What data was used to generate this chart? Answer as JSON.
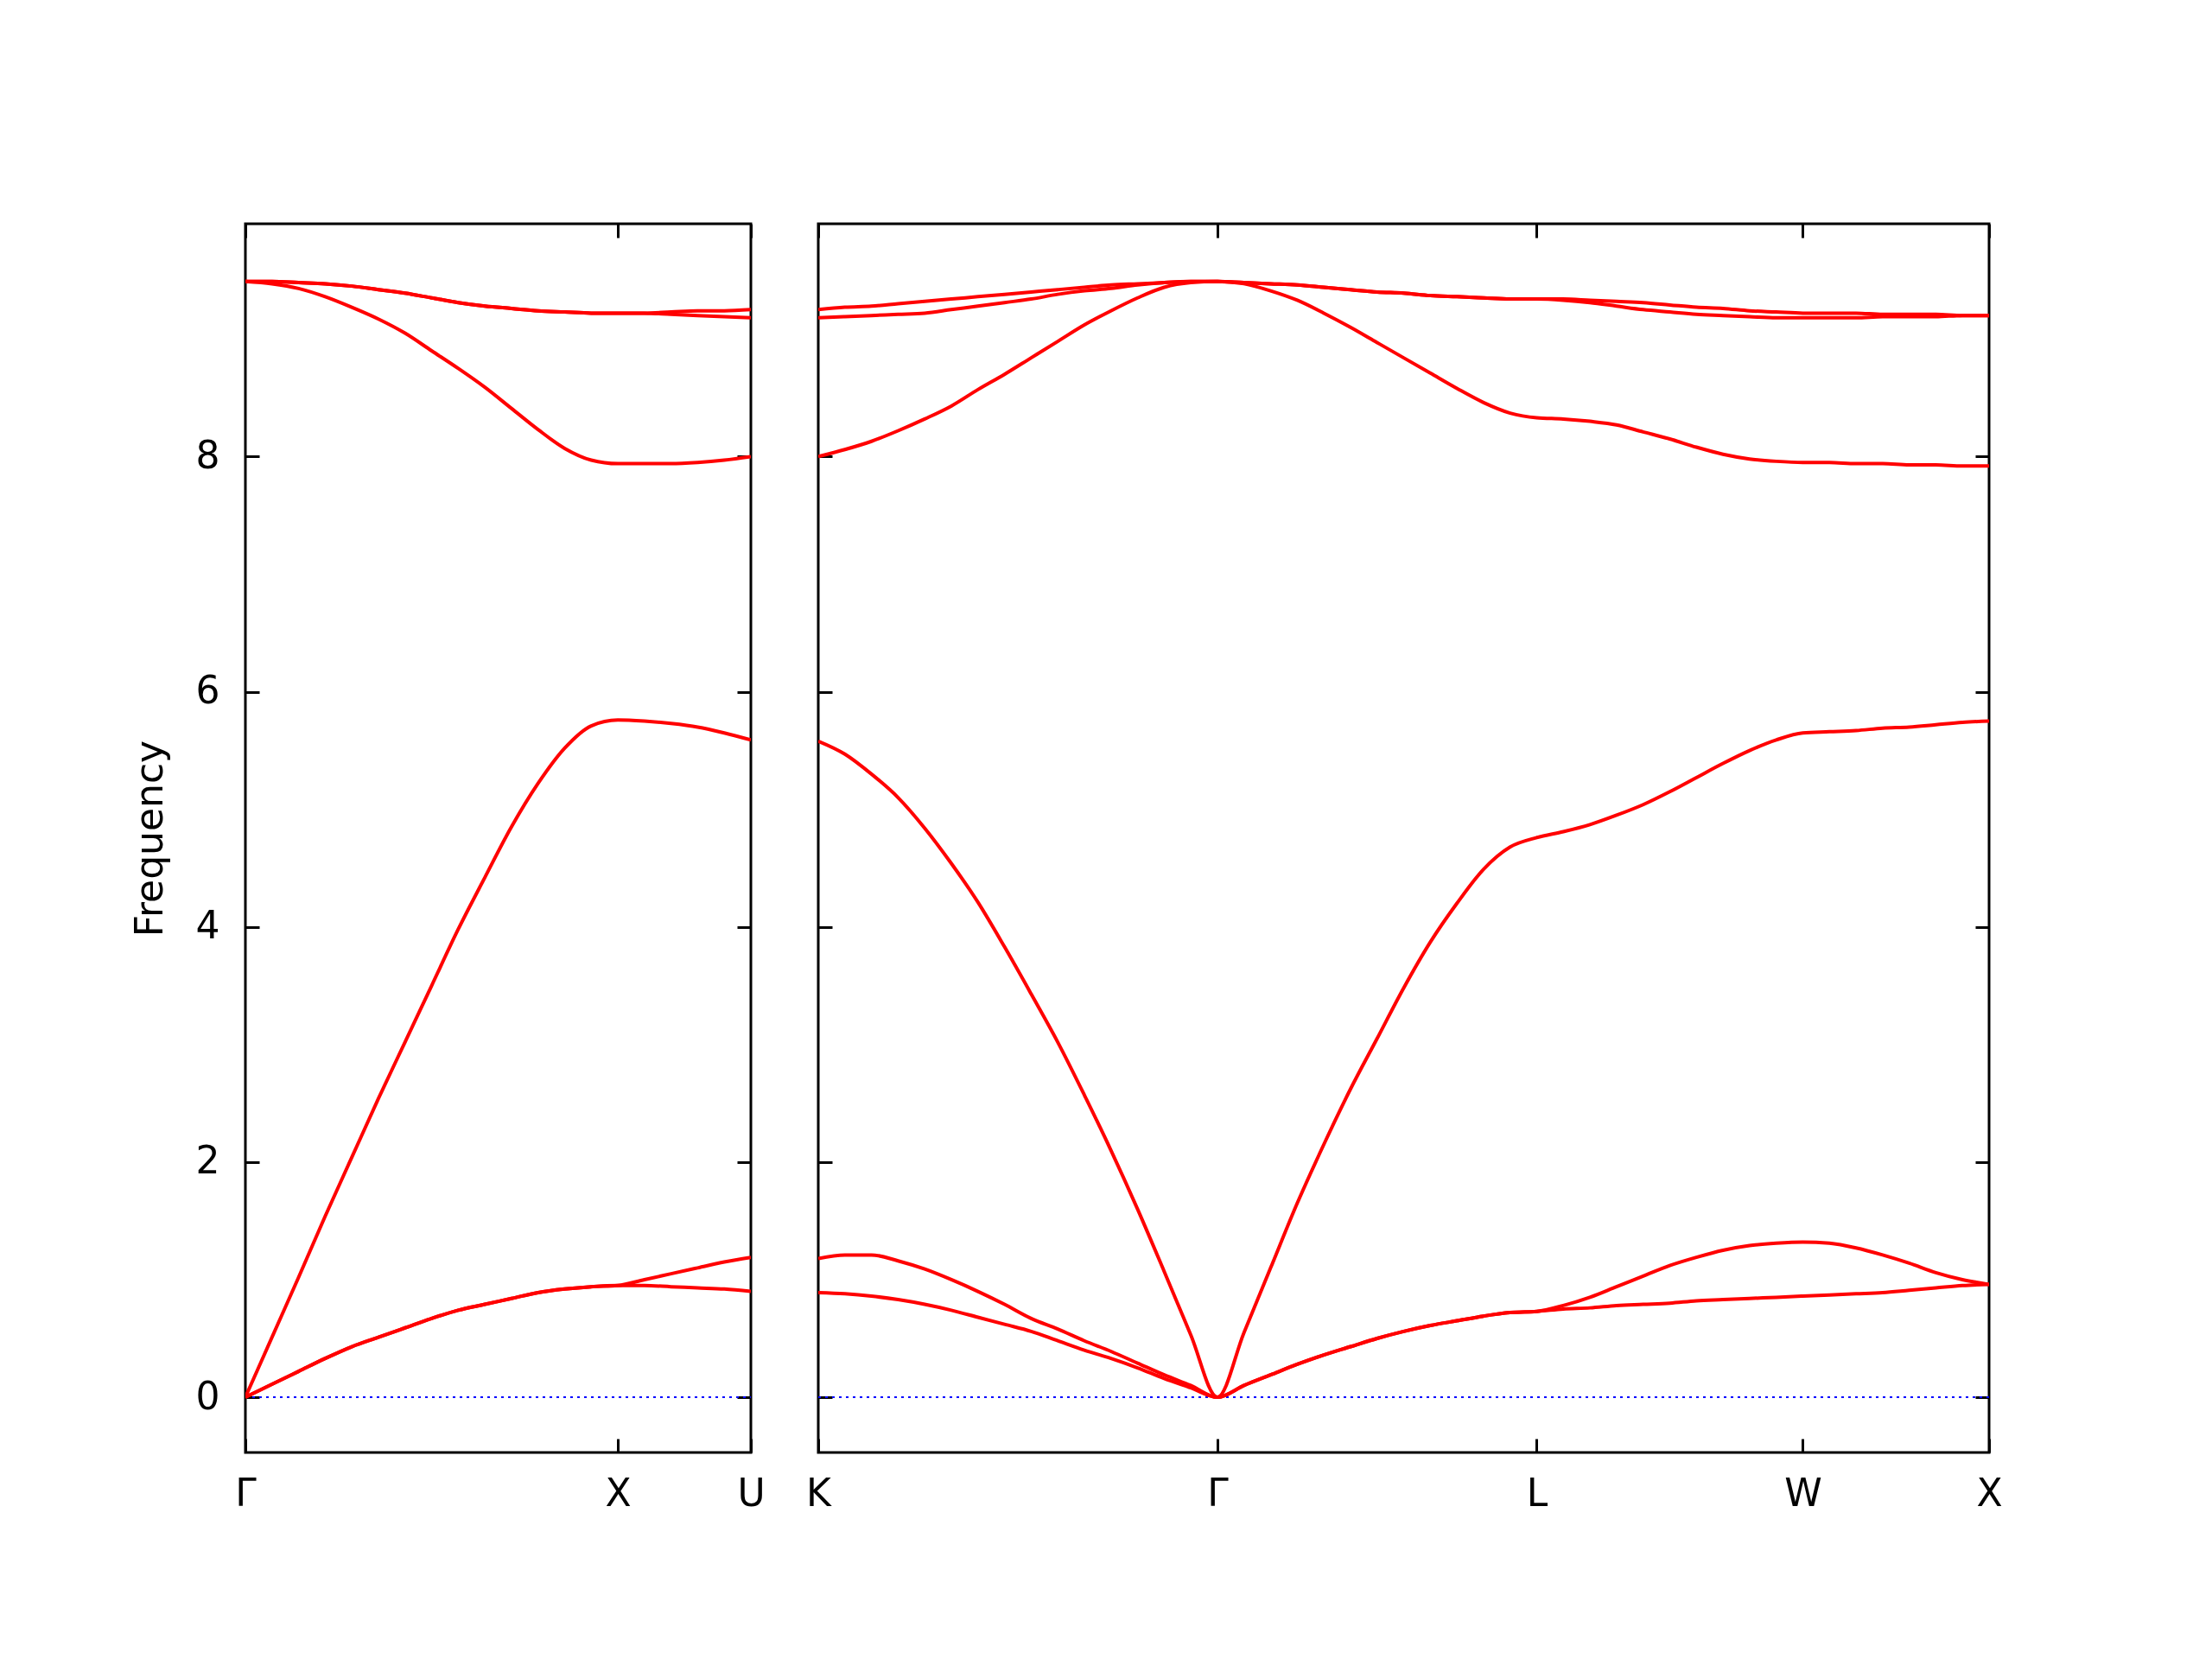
{
  "chart_data": [
    {
      "type": "line",
      "ylabel": "Frequency",
      "ylim": [
        -0.47,
        9.98
      ],
      "categories": [
        "Γ",
        null,
        null,
        null,
        null,
        null,
        null,
        null,
        null,
        null,
        null,
        null,
        null,
        null,
        "X",
        null,
        null,
        null,
        null,
        "U"
      ],
      "yticks": [
        0,
        2,
        4,
        6,
        8
      ],
      "grid": false,
      "line_style": "solid",
      "marker": "none",
      "ref_lines": [
        {
          "axis": "y",
          "value": 0,
          "color": "#0000ff",
          "line_style": "dotted"
        }
      ],
      "series": [
        {
          "color": "#ff0000",
          "values": [
            0,
            0.11,
            0.22,
            0.33,
            0.43,
            0.51,
            0.59,
            0.67,
            0.74,
            0.79,
            0.84,
            0.89,
            0.92,
            0.94,
            0.95,
            0.95,
            0.94,
            0.93,
            0.92,
            0.9
          ]
        },
        {
          "color": "#ff0000",
          "values": [
            0,
            0.11,
            0.22,
            0.33,
            0.43,
            0.51,
            0.59,
            0.67,
            0.74,
            0.79,
            0.84,
            0.89,
            0.92,
            0.94,
            0.95,
            1.0,
            1.05,
            1.1,
            1.15,
            1.19
          ]
        },
        {
          "color": "#ff0000",
          "values": [
            0,
            0.51,
            1.02,
            1.54,
            2.04,
            2.54,
            3.02,
            3.5,
            3.98,
            4.42,
            4.85,
            5.22,
            5.52,
            5.71,
            5.76,
            5.75,
            5.73,
            5.7,
            5.65,
            5.59
          ]
        },
        {
          "color": "#ff0000",
          "values": [
            9.49,
            9.47,
            9.43,
            9.36,
            9.27,
            9.17,
            9.05,
            8.9,
            8.75,
            8.59,
            8.41,
            8.23,
            8.07,
            7.97,
            7.94,
            7.94,
            7.94,
            7.95,
            7.97,
            8.0
          ]
        },
        {
          "color": "#ff0000",
          "values": [
            9.49,
            9.49,
            9.48,
            9.47,
            9.45,
            9.42,
            9.39,
            9.35,
            9.31,
            9.28,
            9.26,
            9.24,
            9.23,
            9.22,
            9.22,
            9.22,
            9.23,
            9.24,
            9.24,
            9.25
          ]
        },
        {
          "color": "#ff0000",
          "values": [
            9.49,
            9.49,
            9.48,
            9.47,
            9.45,
            9.42,
            9.39,
            9.35,
            9.31,
            9.28,
            9.26,
            9.24,
            9.23,
            9.22,
            9.22,
            9.22,
            9.21,
            9.2,
            9.19,
            9.18
          ]
        }
      ]
    },
    {
      "type": "line",
      "ylim": [
        -0.47,
        9.98
      ],
      "tick_labels": "x",
      "categories": [
        "K",
        null,
        null,
        null,
        null,
        null,
        null,
        null,
        null,
        null,
        null,
        null,
        null,
        null,
        null,
        "Γ",
        null,
        null,
        null,
        null,
        null,
        null,
        null,
        null,
        null,
        null,
        null,
        "L",
        null,
        null,
        null,
        null,
        null,
        null,
        null,
        null,
        null,
        "W",
        null,
        null,
        null,
        null,
        null,
        null,
        "X"
      ],
      "yticks": [
        0,
        2,
        4,
        6,
        8
      ],
      "grid": false,
      "line_style": "solid",
      "marker": "none",
      "ref_lines": [
        {
          "axis": "y",
          "value": 0,
          "color": "#0000ff",
          "line_style": "dotted"
        }
      ],
      "series": [
        {
          "color": "#ff0000",
          "values": [
            0.89,
            0.88,
            0.86,
            0.83,
            0.79,
            0.74,
            0.68,
            0.62,
            0.56,
            0.48,
            0.4,
            0.33,
            0.25,
            0.16,
            0.08,
            0,
            0.1,
            0.19,
            0.28,
            0.36,
            0.43,
            0.5,
            0.56,
            0.61,
            0.65,
            0.69,
            0.72,
            0.73,
            0.75,
            0.76,
            0.78,
            0.79,
            0.8,
            0.82,
            0.83,
            0.84,
            0.85,
            0.86,
            0.87,
            0.88,
            0.89,
            0.91,
            0.93,
            0.95,
            0.96
          ]
        },
        {
          "color": "#ff0000",
          "values": [
            1.18,
            1.21,
            1.21,
            1.16,
            1.09,
            1.0,
            0.9,
            0.79,
            0.67,
            0.58,
            0.48,
            0.39,
            0.29,
            0.19,
            0.1,
            0,
            0.1,
            0.19,
            0.28,
            0.36,
            0.43,
            0.5,
            0.56,
            0.61,
            0.65,
            0.69,
            0.72,
            0.73,
            0.78,
            0.85,
            0.94,
            1.03,
            1.12,
            1.19,
            1.25,
            1.29,
            1.31,
            1.32,
            1.31,
            1.27,
            1.21,
            1.14,
            1.06,
            1.0,
            0.96
          ]
        },
        {
          "color": "#ff0000",
          "values": [
            5.58,
            5.47,
            5.3,
            5.1,
            4.84,
            4.54,
            4.21,
            3.83,
            3.43,
            3.02,
            2.57,
            2.1,
            1.6,
            1.07,
            0.53,
            0,
            0.55,
            1.1,
            1.65,
            2.15,
            2.62,
            3.05,
            3.48,
            3.87,
            4.2,
            4.49,
            4.68,
            4.76,
            4.81,
            4.87,
            4.95,
            5.04,
            5.15,
            5.27,
            5.39,
            5.5,
            5.59,
            5.65,
            5.66,
            5.67,
            5.69,
            5.7,
            5.72,
            5.74,
            5.75
          ]
        },
        {
          "color": "#ff0000",
          "values": [
            8.0,
            8.06,
            8.13,
            8.22,
            8.32,
            8.43,
            8.57,
            8.7,
            8.84,
            8.98,
            9.12,
            9.24,
            9.35,
            9.44,
            9.48,
            9.49,
            9.47,
            9.41,
            9.33,
            9.22,
            9.1,
            8.97,
            8.84,
            8.71,
            8.58,
            8.46,
            8.37,
            8.33,
            8.32,
            8.3,
            8.27,
            8.21,
            8.15,
            8.08,
            8.02,
            7.98,
            7.96,
            7.95,
            7.95,
            7.94,
            7.94,
            7.93,
            7.93,
            7.92,
            7.92
          ]
        },
        {
          "color": "#ff0000",
          "values": [
            9.25,
            9.27,
            9.28,
            9.3,
            9.32,
            9.34,
            9.36,
            9.38,
            9.4,
            9.42,
            9.44,
            9.46,
            9.47,
            9.48,
            9.49,
            9.49,
            9.48,
            9.47,
            9.46,
            9.44,
            9.42,
            9.4,
            9.39,
            9.37,
            9.36,
            9.35,
            9.34,
            9.34,
            9.34,
            9.33,
            9.32,
            9.31,
            9.29,
            9.27,
            9.26,
            9.24,
            9.23,
            9.22,
            9.22,
            9.22,
            9.21,
            9.21,
            9.21,
            9.2,
            9.2
          ]
        },
        {
          "color": "#ff0000",
          "values": [
            9.18,
            9.19,
            9.2,
            9.21,
            9.22,
            9.25,
            9.28,
            9.31,
            9.34,
            9.38,
            9.41,
            9.43,
            9.46,
            9.48,
            9.49,
            9.49,
            9.48,
            9.47,
            9.46,
            9.44,
            9.42,
            9.4,
            9.39,
            9.37,
            9.36,
            9.35,
            9.34,
            9.34,
            9.33,
            9.31,
            9.28,
            9.25,
            9.23,
            9.21,
            9.2,
            9.19,
            9.18,
            9.18,
            9.18,
            9.18,
            9.19,
            9.19,
            9.19,
            9.2,
            9.2
          ]
        }
      ]
    }
  ]
}
